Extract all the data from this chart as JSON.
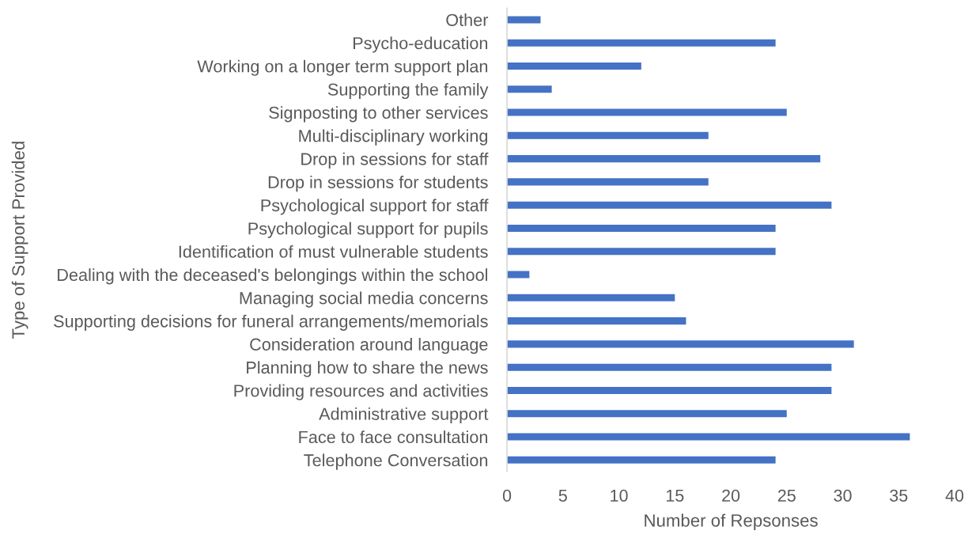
{
  "chart_data": {
    "type": "bar",
    "orientation": "horizontal",
    "categories": [
      "Other",
      "Psycho-education",
      "Working on a longer term support plan",
      "Supporting the family",
      "Signposting to other services",
      "Multi-disciplinary working",
      "Drop in sessions for staff",
      "Drop in sessions for students",
      "Psychological support for staff",
      "Psychological support for pupils",
      "Identification of must vulnerable students",
      "Dealing with the deceased's belongings within the school",
      "Managing social media concerns",
      "Supporting decisions for funeral arrangements/memorials",
      "Consideration around language",
      "Planning how to share the news",
      "Providing resources and activities",
      "Administrative support",
      "Face to face consultation",
      "Telephone Conversation"
    ],
    "values": [
      3,
      24,
      12,
      4,
      25,
      18,
      28,
      18,
      29,
      24,
      24,
      2,
      15,
      16,
      31,
      29,
      29,
      25,
      36,
      24
    ],
    "color": "#4472c4",
    "xlim": [
      0,
      40
    ],
    "xticks": [
      0,
      5,
      10,
      15,
      20,
      25,
      30,
      35,
      40
    ],
    "xlabel": "Number of Repsonses",
    "ylabel": "Type of Support Provided",
    "grid": false
  }
}
